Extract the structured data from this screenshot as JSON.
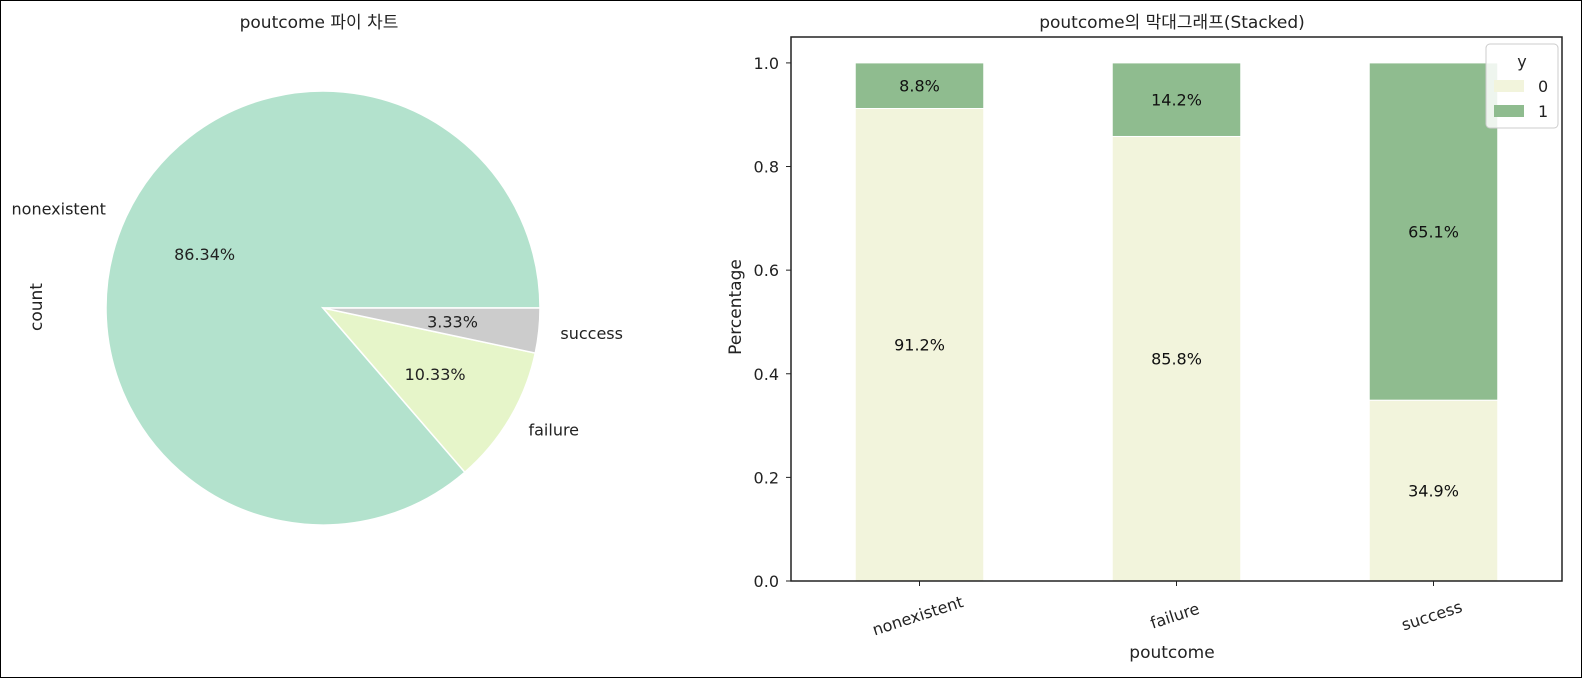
{
  "chart_data": [
    {
      "type": "pie",
      "title": "poutcome 파이 차트",
      "ylabel": "count",
      "categories": [
        "nonexistent",
        "failure",
        "success"
      ],
      "values": [
        86.34,
        10.33,
        3.33
      ],
      "pct_labels": [
        "86.34%",
        "10.33%",
        "3.33%"
      ],
      "colors": [
        "#b3e2cd",
        "#e6f5c9",
        "#cccccc"
      ]
    },
    {
      "type": "bar",
      "stacked": true,
      "title": "poutcome의 막대그래프(Stacked)",
      "xlabel": "poutcome",
      "ylabel": "Percentage",
      "categories": [
        "nonexistent",
        "failure",
        "success"
      ],
      "ylim": [
        0,
        1.05
      ],
      "yticks": [
        "0.0",
        "0.2",
        "0.4",
        "0.6",
        "0.8",
        "1.0"
      ],
      "legend": {
        "title": "y",
        "placement": "top-right"
      },
      "series": [
        {
          "name": "0",
          "values": [
            0.912,
            0.858,
            0.349
          ],
          "labels": [
            "91.2%",
            "85.8%",
            "34.9%"
          ],
          "color": "#f2f4dc"
        },
        {
          "name": "1",
          "values": [
            0.088,
            0.142,
            0.651
          ],
          "labels": [
            "8.8%",
            "14.2%",
            "65.1%"
          ],
          "color": "#8fbc8f"
        }
      ]
    }
  ]
}
